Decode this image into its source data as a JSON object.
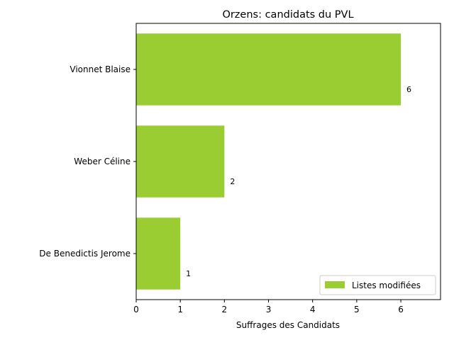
{
  "chart_data": {
    "type": "bar",
    "orientation": "horizontal",
    "title": "Orzens: candidats du PVL",
    "xlabel": "Suffrages des Candidats",
    "ylabel": "",
    "categories": [
      "Vionnet Blaise",
      "Weber Céline",
      "De Benedictis Jerome"
    ],
    "series": [
      {
        "name": "Listes modifiées",
        "values": [
          6,
          2,
          1
        ],
        "color": "#9acd32"
      }
    ],
    "data_labels": [
      "6",
      "2",
      "1"
    ],
    "xlim": [
      0,
      6.9
    ],
    "xticks": [
      0,
      1,
      2,
      3,
      4,
      5,
      6
    ],
    "grid": false,
    "legend_position": "lower-right"
  }
}
